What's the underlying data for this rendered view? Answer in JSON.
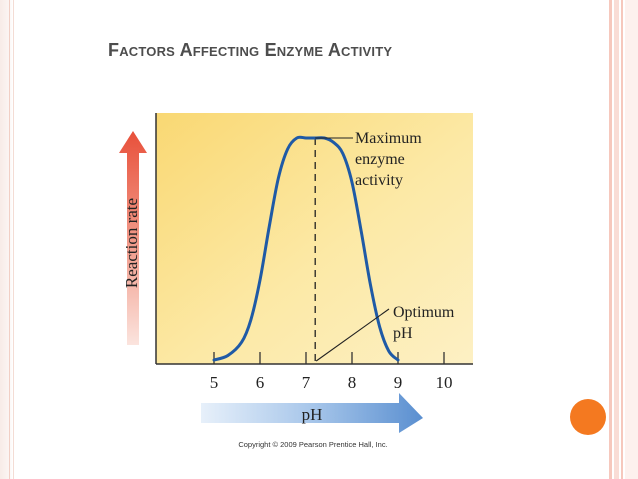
{
  "slide": {
    "title": "Factors Affecting Enzyme Activity"
  },
  "colors": {
    "plot_background": "#fce9a6",
    "curve": "#1f5aa6",
    "up_arrow": "#e8503a",
    "right_arrow": "#5a8fd0",
    "accent_dot": "#f47920"
  },
  "chart_data": {
    "type": "line",
    "title": "",
    "xlabel": "pH",
    "ylabel": "Reaction rate",
    "x_ticks": [
      5,
      6,
      7,
      8,
      9,
      10
    ],
    "xlim": [
      4.0,
      10.3
    ],
    "ylim": [
      0,
      1
    ],
    "grid": false,
    "series": [
      {
        "x": [
          5.0,
          5.3,
          5.6,
          5.8,
          6.0,
          6.2,
          6.4,
          6.6,
          6.8,
          7.0,
          7.2,
          7.4,
          7.6,
          7.8,
          8.0,
          8.2,
          8.4,
          8.6,
          8.8,
          9.0
        ],
        "y": [
          0.0,
          0.02,
          0.08,
          0.18,
          0.36,
          0.6,
          0.82,
          0.95,
          1.0,
          1.0,
          1.0,
          1.0,
          0.98,
          0.93,
          0.8,
          0.58,
          0.34,
          0.15,
          0.04,
          0.0
        ]
      }
    ],
    "optimum_ph": 7.2,
    "annotations": [
      {
        "text": [
          "Maximum",
          "enzyme",
          "activity"
        ],
        "target": "peak"
      },
      {
        "text": [
          "Optimum",
          "pH"
        ],
        "target": "optimum_ph"
      }
    ],
    "copyright": "Copyright © 2009 Pearson Prentice Hall, Inc."
  }
}
